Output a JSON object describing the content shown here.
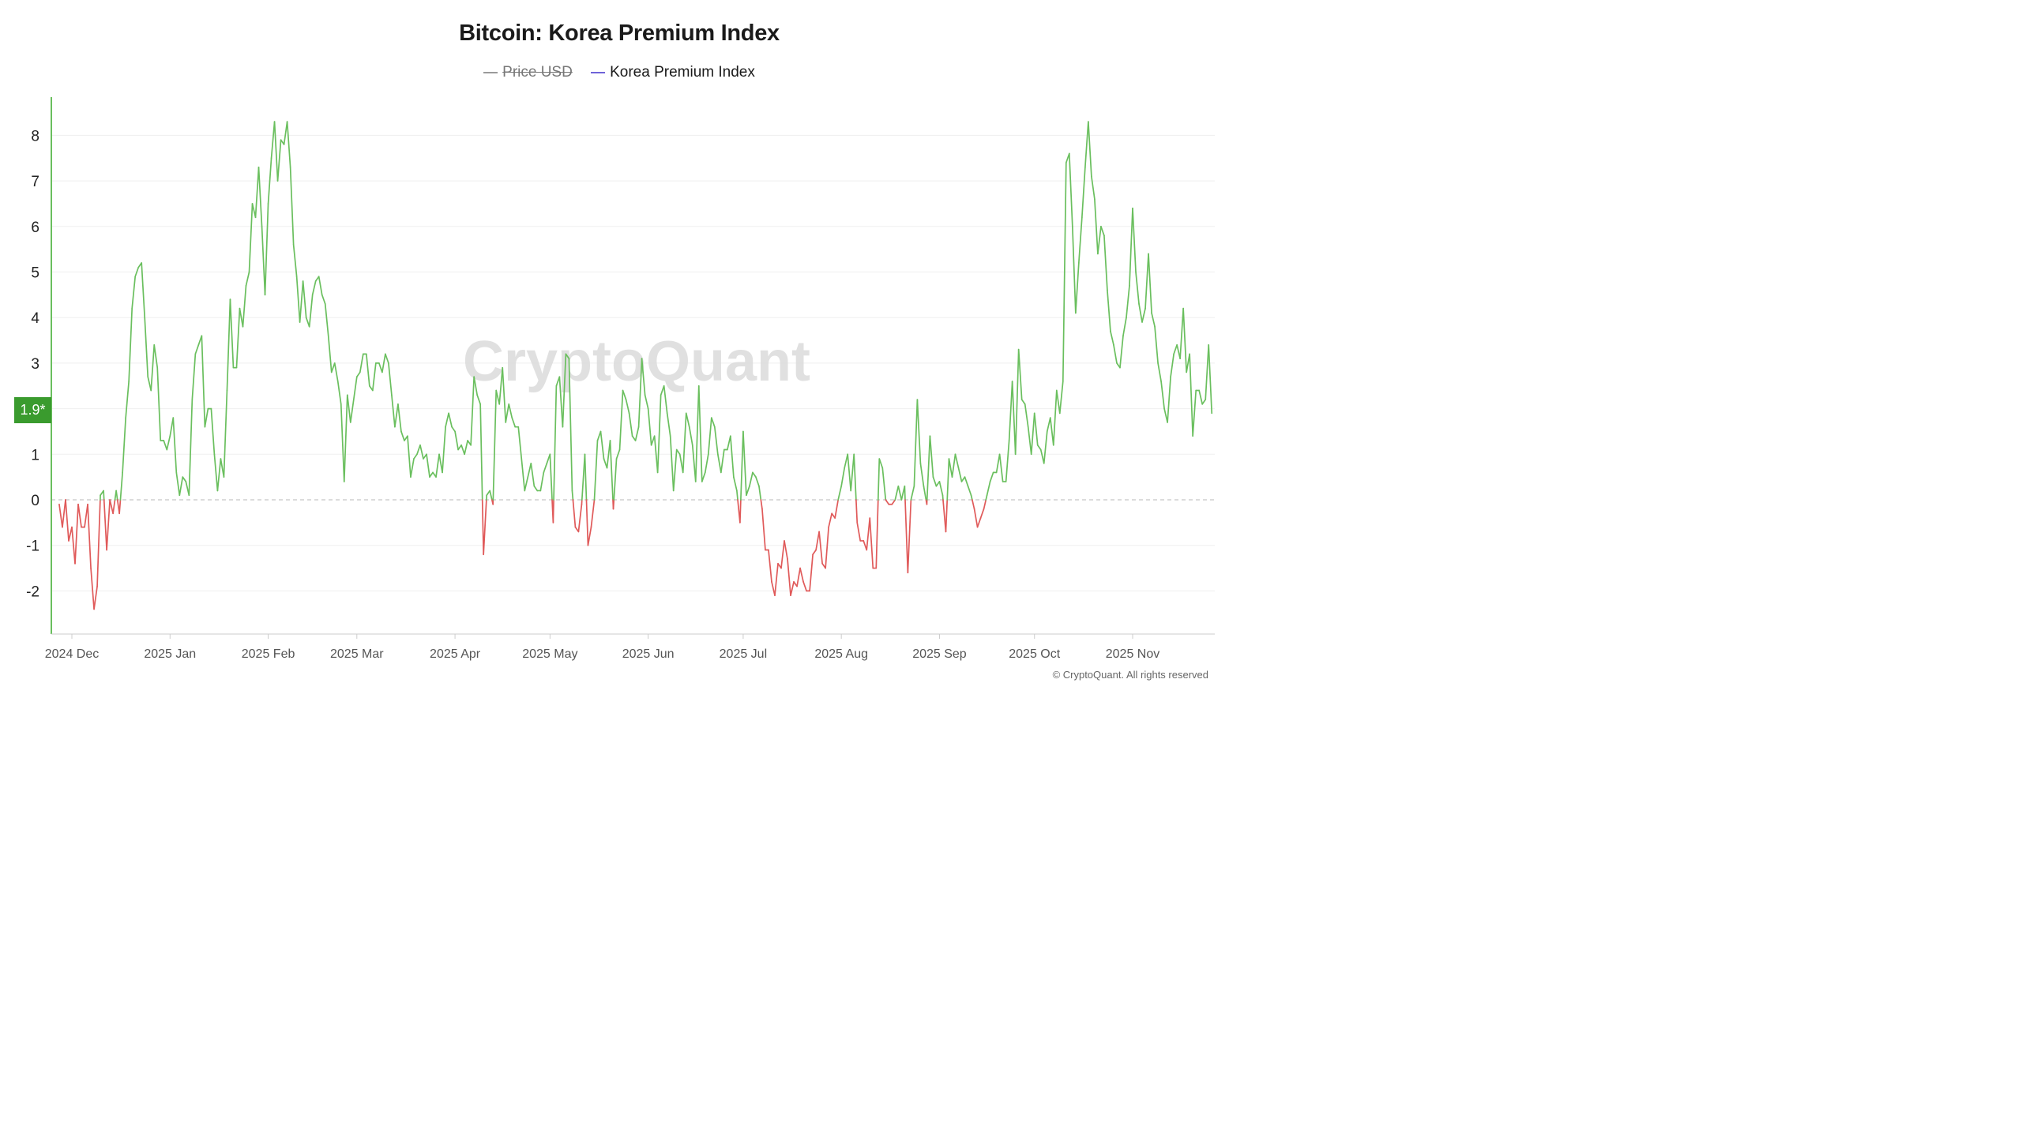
{
  "chart_data": {
    "type": "line",
    "title": "Bitcoin: Korea Premium Index",
    "legend": [
      {
        "name": "Price USD",
        "enabled": false,
        "color": "#9a9a9a"
      },
      {
        "name": "Korea Premium Index",
        "enabled": true,
        "color": "#6f63d8"
      }
    ],
    "xlabel": "",
    "ylabel": "",
    "ylim": [
      -2.95,
      8.85
    ],
    "yticks": [
      -2,
      -1,
      0,
      1,
      2,
      3,
      4,
      5,
      6,
      7,
      8
    ],
    "ytick_labels": [
      "-2",
      "-1",
      "0",
      "1",
      "",
      "3",
      "4",
      "5",
      "6",
      "7",
      "8"
    ],
    "x_start": "2024-11-27",
    "x_end": "2025-11-28",
    "xticks": [
      {
        "date": "2024-12-01",
        "label": "2024 Dec"
      },
      {
        "date": "2025-01-01",
        "label": "2025 Jan"
      },
      {
        "date": "2025-02-01",
        "label": "2025 Feb"
      },
      {
        "date": "2025-03-01",
        "label": "2025 Mar"
      },
      {
        "date": "2025-04-01",
        "label": "2025 Apr"
      },
      {
        "date": "2025-05-01",
        "label": "2025 May"
      },
      {
        "date": "2025-06-01",
        "label": "2025 Jun"
      },
      {
        "date": "2025-07-01",
        "label": "2025 Jul"
      },
      {
        "date": "2025-08-01",
        "label": "2025 Aug"
      },
      {
        "date": "2025-09-01",
        "label": "2025 Sep"
      },
      {
        "date": "2025-10-01",
        "label": "2025 Oct"
      },
      {
        "date": "2025-11-01",
        "label": "2025 Nov"
      }
    ],
    "positive_color": "#6abf5e",
    "negative_color": "#e05a5a",
    "zero_line": true,
    "current_value_label": "1.9*",
    "current_value_color": "#3a9b2e",
    "series": [
      {
        "name": "Korea Premium Index",
        "start_date": "2024-11-27",
        "step_days": 1,
        "values": [
          -0.1,
          -0.6,
          0.0,
          -0.9,
          -0.6,
          -1.4,
          -0.1,
          -0.6,
          -0.6,
          -0.1,
          -1.5,
          -2.4,
          -1.9,
          0.1,
          0.2,
          -1.1,
          0.0,
          -0.3,
          0.2,
          -0.3,
          0.6,
          1.8,
          2.6,
          4.2,
          4.9,
          5.1,
          5.2,
          4.0,
          2.7,
          2.4,
          3.4,
          2.9,
          1.3,
          1.3,
          1.1,
          1.4,
          1.8,
          0.6,
          0.1,
          0.5,
          0.4,
          0.1,
          2.2,
          3.2,
          3.4,
          3.6,
          1.6,
          2.0,
          2.0,
          1.0,
          0.2,
          0.9,
          0.5,
          2.4,
          4.4,
          2.9,
          2.9,
          4.2,
          3.8,
          4.7,
          5.0,
          6.5,
          6.2,
          7.3,
          6.0,
          4.5,
          6.5,
          7.5,
          8.3,
          7.0,
          7.9,
          7.8,
          8.3,
          7.3,
          5.6,
          4.9,
          3.9,
          4.8,
          4.0,
          3.8,
          4.5,
          4.8,
          4.9,
          4.5,
          4.3,
          3.6,
          2.8,
          3.0,
          2.6,
          2.1,
          0.4,
          2.3,
          1.7,
          2.2,
          2.7,
          2.8,
          3.2,
          3.2,
          2.5,
          2.4,
          3.0,
          3.0,
          2.8,
          3.2,
          3.0,
          2.3,
          1.6,
          2.1,
          1.5,
          1.3,
          1.4,
          0.5,
          0.9,
          1.0,
          1.2,
          0.9,
          1.0,
          0.5,
          0.6,
          0.5,
          1.0,
          0.6,
          1.6,
          1.9,
          1.6,
          1.5,
          1.1,
          1.2,
          1.0,
          1.3,
          1.2,
          2.7,
          2.3,
          2.1,
          -1.2,
          0.1,
          0.2,
          -0.1,
          2.4,
          2.1,
          2.9,
          1.7,
          2.1,
          1.8,
          1.6,
          1.6,
          0.9,
          0.2,
          0.5,
          0.8,
          0.3,
          0.2,
          0.2,
          0.6,
          0.8,
          1.0,
          -0.5,
          2.5,
          2.7,
          1.6,
          3.2,
          3.1,
          0.2,
          -0.6,
          -0.7,
          -0.1,
          1.0,
          -1.0,
          -0.6,
          0.0,
          1.3,
          1.5,
          0.9,
          0.7,
          1.3,
          -0.2,
          0.9,
          1.1,
          2.4,
          2.2,
          1.9,
          1.4,
          1.3,
          1.6,
          3.1,
          2.3,
          2.0,
          1.2,
          1.4,
          0.6,
          2.3,
          2.5,
          1.9,
          1.4,
          0.2,
          1.1,
          1.0,
          0.6,
          1.9,
          1.6,
          1.2,
          0.4,
          2.5,
          0.4,
          0.6,
          1.0,
          1.8,
          1.6,
          1.0,
          0.6,
          1.1,
          1.1,
          1.4,
          0.5,
          0.2,
          -0.5,
          1.5,
          0.1,
          0.3,
          0.6,
          0.5,
          0.3,
          -0.2,
          -1.1,
          -1.1,
          -1.8,
          -2.1,
          -1.4,
          -1.5,
          -0.9,
          -1.3,
          -2.1,
          -1.8,
          -1.9,
          -1.5,
          -1.8,
          -2.0,
          -2.0,
          -1.2,
          -1.1,
          -0.7,
          -1.4,
          -1.5,
          -0.6,
          -0.3,
          -0.4,
          0.0,
          0.3,
          0.7,
          1.0,
          0.2,
          1.0,
          -0.5,
          -0.9,
          -0.9,
          -1.1,
          -0.4,
          -1.5,
          -1.5,
          0.9,
          0.7,
          0.0,
          -0.1,
          -0.1,
          0.0,
          0.3,
          0.0,
          0.3,
          -1.6,
          0.0,
          0.3,
          2.2,
          0.8,
          0.3,
          -0.1,
          1.4,
          0.5,
          0.3,
          0.4,
          0.1,
          -0.7,
          0.9,
          0.5,
          1.0,
          0.7,
          0.4,
          0.5,
          0.3,
          0.1,
          -0.2,
          -0.6,
          -0.4,
          -0.2,
          0.1,
          0.4,
          0.6,
          0.6,
          1.0,
          0.4,
          0.4,
          1.3,
          2.6,
          1.0,
          3.3,
          2.2,
          2.1,
          1.6,
          1.0,
          1.9,
          1.2,
          1.1,
          0.8,
          1.5,
          1.8,
          1.2,
          2.4,
          1.9,
          2.6,
          7.4,
          7.6,
          6.0,
          4.1,
          5.2,
          6.2,
          7.3,
          8.3,
          7.1,
          6.6,
          5.4,
          6.0,
          5.8,
          4.6,
          3.7,
          3.4,
          3.0,
          2.9,
          3.6,
          4.0,
          4.7,
          6.4,
          5.0,
          4.3,
          3.9,
          4.2,
          5.4,
          4.1,
          3.8,
          3.0,
          2.6,
          2.0,
          1.7,
          2.7,
          3.2,
          3.4,
          3.1,
          4.2,
          2.8,
          3.2,
          1.4,
          2.4,
          2.4,
          2.1,
          2.2,
          3.4,
          1.9
        ]
      }
    ],
    "watermark": "CryptoQuant",
    "copyright": "© CryptoQuant. All rights reserved"
  }
}
